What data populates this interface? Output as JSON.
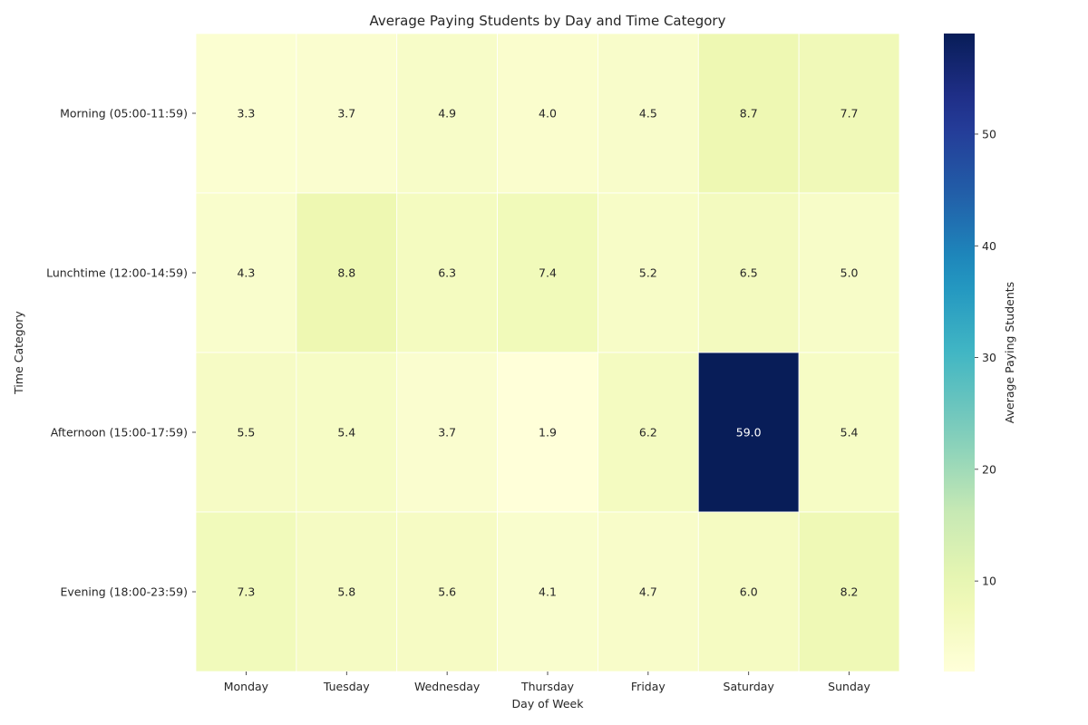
{
  "chart_data": {
    "type": "heatmap",
    "title": "Average Paying Students by Day and Time Category",
    "xlabel": "Day of Week",
    "ylabel": "Time Category",
    "x_categories": [
      "Monday",
      "Tuesday",
      "Wednesday",
      "Thursday",
      "Friday",
      "Saturday",
      "Sunday"
    ],
    "y_categories": [
      "Morning (05:00-11:59)",
      "Lunchtime (12:00-14:59)",
      "Afternoon (15:00-17:59)",
      "Evening (18:00-23:59)"
    ],
    "values": [
      [
        3.3,
        3.7,
        4.9,
        4.0,
        4.5,
        8.7,
        7.7
      ],
      [
        4.3,
        8.8,
        6.3,
        7.4,
        5.2,
        6.5,
        5.0
      ],
      [
        5.5,
        5.4,
        3.7,
        1.9,
        6.2,
        59.0,
        5.4
      ],
      [
        7.3,
        5.8,
        5.6,
        4.1,
        4.7,
        6.0,
        8.2
      ]
    ],
    "value_format": "0.0",
    "colormap": "YlGnBu",
    "colorbar": {
      "label": "Average Paying Students",
      "range": [
        1.9,
        59.0
      ],
      "ticks": [
        10,
        20,
        30,
        40,
        50
      ]
    },
    "grid": false
  }
}
